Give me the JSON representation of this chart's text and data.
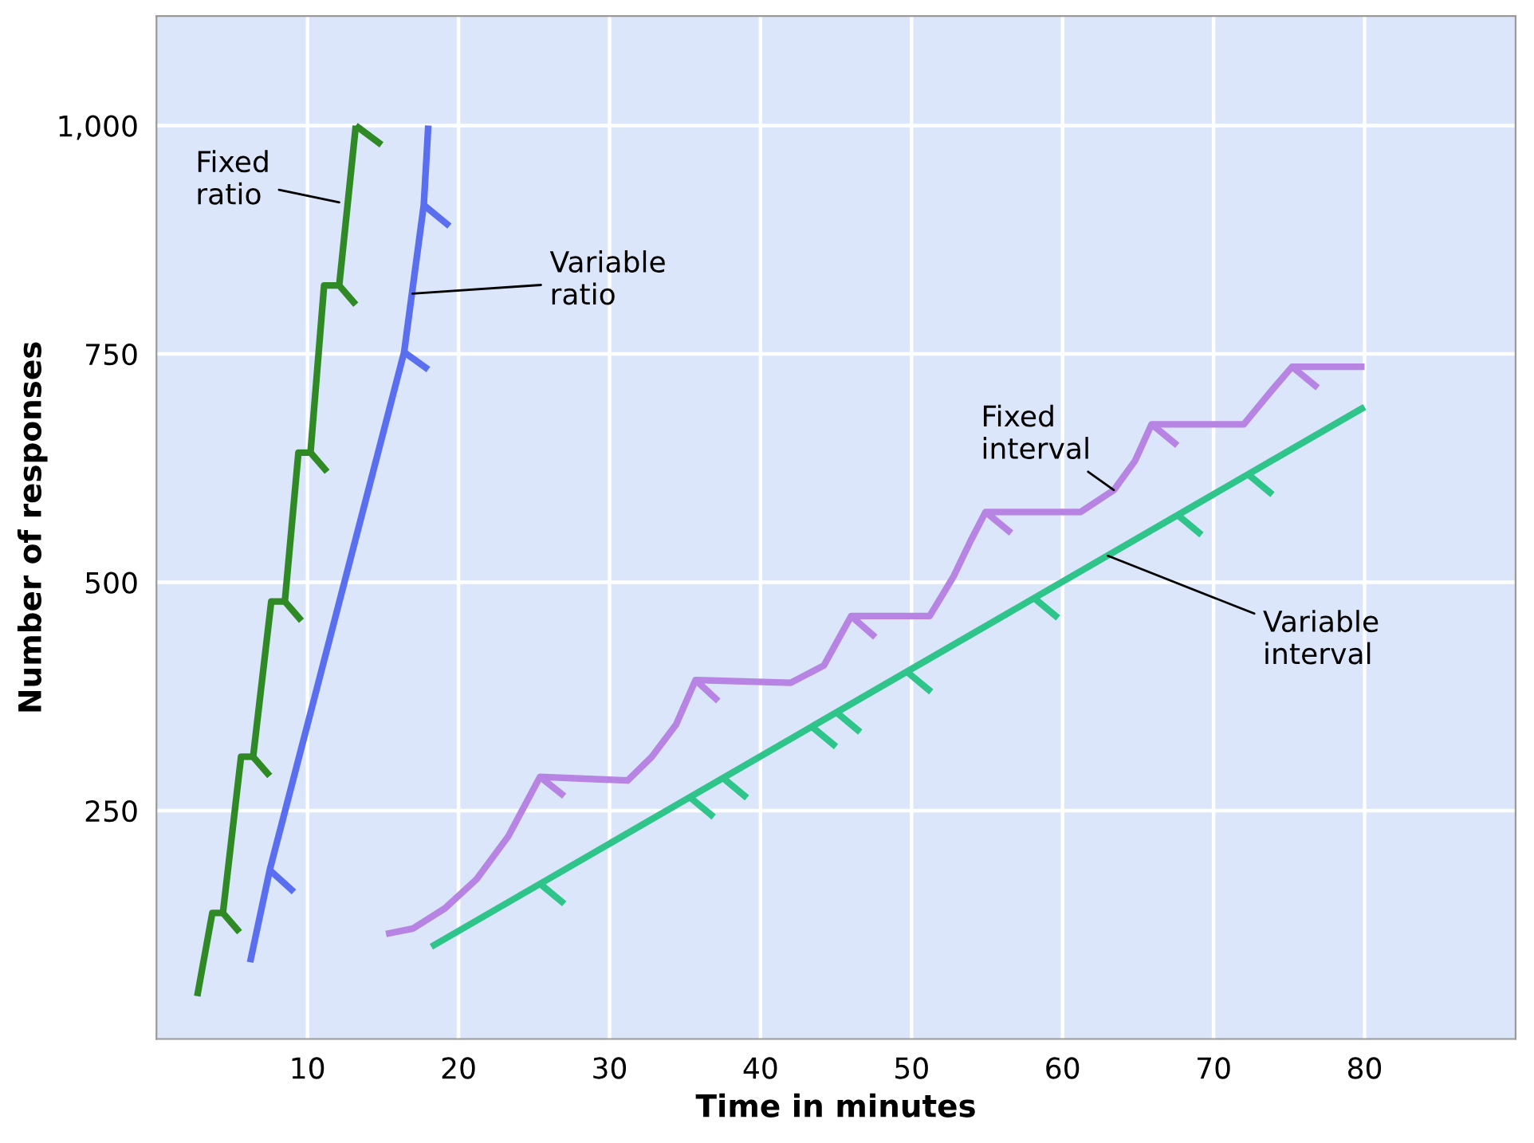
{
  "chart_data": {
    "type": "line",
    "xlabel": "Time in minutes",
    "ylabel": "Number of responses",
    "xlim": [
      0,
      90
    ],
    "ylim": [
      0,
      1120
    ],
    "xticks": [
      10,
      20,
      30,
      40,
      50,
      60,
      70,
      80
    ],
    "yticks": [
      250,
      500,
      750,
      {
        "value": 1000,
        "label": "1,000"
      }
    ],
    "grid": true,
    "line_style": "solid",
    "marker": "none",
    "series": [
      {
        "color": "#2f8a25",
        "x": [
          2.7,
          3.7,
          4.4,
          5.6,
          6.4,
          7.6,
          8.5,
          9.4,
          10.2,
          11.1,
          12.1,
          13.2
        ],
        "values": [
          47,
          138,
          138,
          309,
          309,
          479,
          479,
          642,
          642,
          825,
          825,
          1000
        ]
      },
      {
        "color": "#5a6ef0",
        "x": [
          6.2,
          7.5,
          16.4,
          17.7,
          18.0
        ],
        "values": [
          84,
          185,
          752,
          913,
          1000
        ]
      },
      {
        "color": "#b784e3",
        "x": [
          15.2,
          17.0,
          19.1,
          21.2,
          23.3,
          25.4,
          31.2,
          32.8,
          34.4,
          35.7,
          42.0,
          44.2,
          46.0,
          51.2,
          52.8,
          53.9,
          54.9,
          61.2,
          63.4,
          64.8,
          65.9,
          72.0,
          73.9,
          75.2,
          80.0
        ],
        "values": [
          115,
          121,
          143,
          175,
          222,
          287,
          283,
          309,
          344,
          393,
          390,
          409,
          463,
          463,
          507,
          545,
          577,
          577,
          601,
          633,
          673,
          673,
          711,
          736,
          736
        ]
      },
      {
        "color": "#2ec48a",
        "x": [
          18.2,
          80.0
        ],
        "values": [
          101,
          692
        ]
      },
      {
        "color": "#2f8a25",
        "x": [
          4.4,
          5.5,
          null,
          6.4,
          7.5,
          null,
          8.5,
          9.6,
          null,
          10.2,
          11.3,
          null,
          12.1,
          13.2,
          null,
          13.2,
          14.9
        ],
        "values": [
          138,
          117,
          null,
          309,
          288,
          null,
          479,
          458,
          null,
          642,
          621,
          null,
          825,
          804,
          null,
          1000,
          979
        ]
      },
      {
        "color": "#5a6ef0",
        "x": [
          7.5,
          9.1,
          null,
          16.4,
          18.0,
          null,
          17.7,
          19.4
        ],
        "values": [
          185,
          161,
          null,
          752,
          733,
          null,
          913,
          890
        ]
      },
      {
        "color": "#b784e3",
        "x": [
          25.4,
          27.0,
          null,
          35.7,
          37.2,
          null,
          46.0,
          47.6,
          null,
          54.9,
          56.6,
          null,
          65.9,
          67.6,
          null,
          75.2,
          76.9
        ],
        "values": [
          287,
          266,
          null,
          393,
          370,
          null,
          463,
          440,
          null,
          577,
          554,
          null,
          673,
          650,
          null,
          736,
          713
        ]
      },
      {
        "color": "#2ec48a",
        "x": [
          25.4,
          27.0,
          null,
          35.3,
          36.9,
          null,
          37.5,
          39.1,
          null,
          43.4,
          45.0,
          null,
          45.0,
          46.6,
          null,
          49.7,
          51.3,
          null,
          58.1,
          59.7,
          null,
          67.6,
          69.2,
          null,
          72.3,
          73.9
        ],
        "values": [
          170,
          148,
          null,
          265,
          243,
          null,
          286,
          264,
          null,
          342,
          320,
          null,
          358,
          336,
          null,
          402,
          380,
          null,
          483,
          461,
          null,
          574,
          552,
          null,
          618,
          596
        ]
      }
    ],
    "annotations": [
      {
        "text": "Fixed\nratio",
        "x": 12.1,
        "y": 916
      },
      {
        "text": "Variable\nratio",
        "x": 16.95,
        "y": 816
      },
      {
        "text": "Fixed\ninterval",
        "x": 63.4,
        "y": 601
      },
      {
        "text": "Variable\ninterval",
        "x": 63.0,
        "y": 529
      }
    ]
  }
}
